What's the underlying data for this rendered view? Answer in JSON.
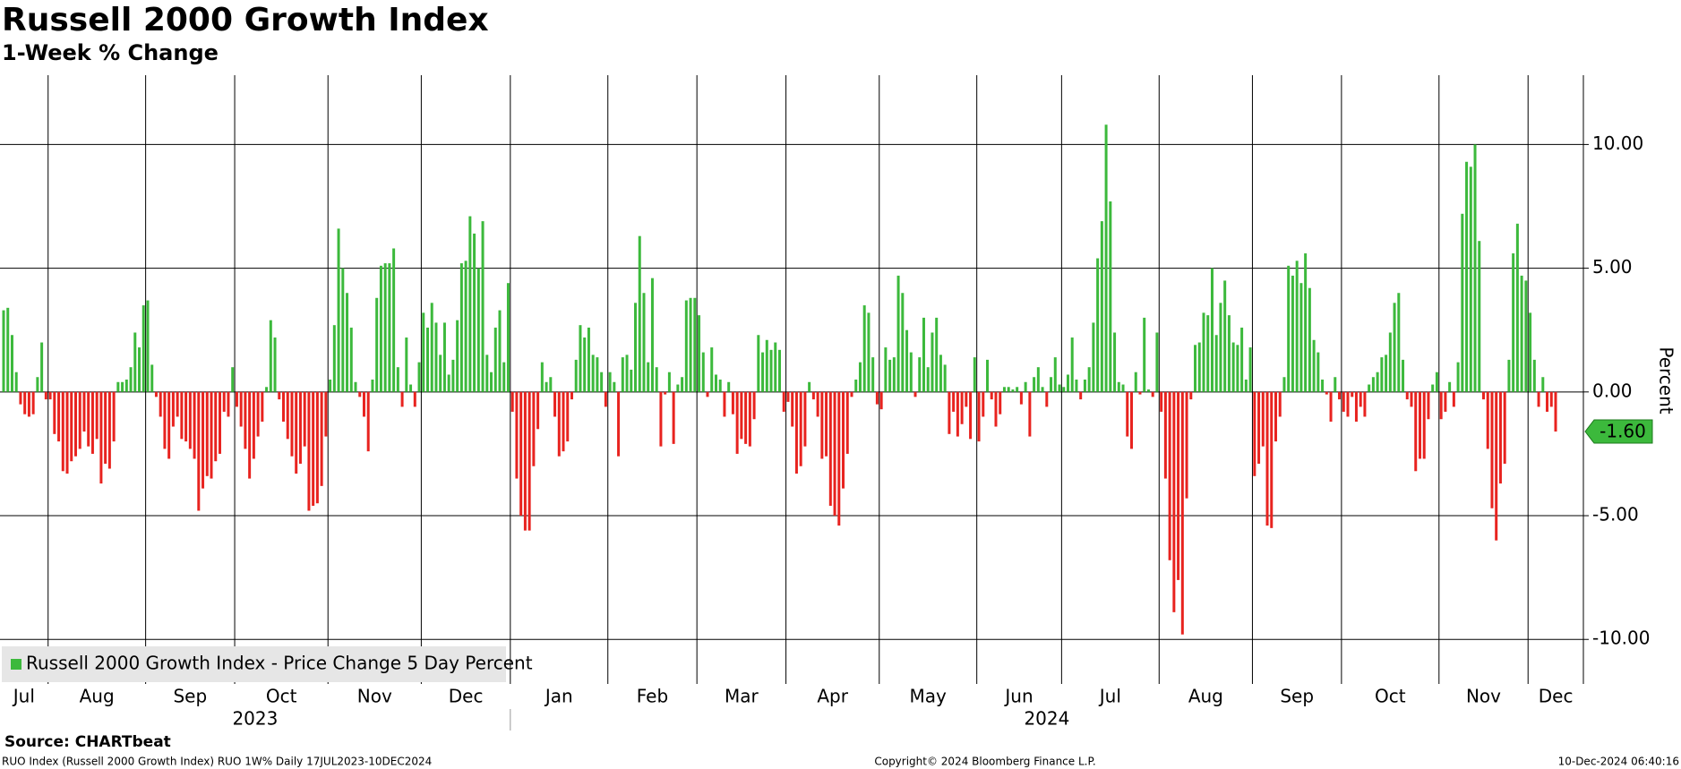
{
  "chart_data": {
    "type": "bar",
    "title": "Russell 2000 Growth Index",
    "subtitle": "1-Week % Change",
    "ylabel": "Percent",
    "categories": [
      "Jul",
      null,
      null,
      null,
      null,
      null,
      null,
      null,
      null,
      null,
      null,
      "Aug",
      null,
      null,
      null,
      null,
      null,
      null,
      null,
      null,
      null,
      null,
      null,
      null,
      null,
      null,
      null,
      null,
      null,
      null,
      null,
      null,
      null,
      null,
      "Sep",
      null,
      null,
      null,
      null,
      null,
      null,
      null,
      null,
      null,
      null,
      null,
      null,
      null,
      null,
      null,
      null,
      null,
      null,
      null,
      null,
      "Oct",
      null,
      null,
      null,
      null,
      null,
      null,
      null,
      null,
      null,
      null,
      null,
      null,
      null,
      null,
      null,
      null,
      null,
      null,
      null,
      null,
      null,
      "Nov",
      null,
      null,
      null,
      null,
      null,
      null,
      null,
      null,
      null,
      null,
      null,
      null,
      null,
      null,
      null,
      null,
      null,
      null,
      null,
      null,
      null,
      "Dec",
      null,
      null,
      null,
      null,
      null,
      null,
      null,
      null,
      null,
      null,
      null,
      null,
      null,
      null,
      null,
      null,
      null,
      null,
      null,
      null,
      "Jan",
      null,
      null,
      null,
      null,
      null,
      null,
      null,
      null,
      null,
      null,
      null,
      null,
      null,
      null,
      null,
      null,
      null,
      null,
      null,
      null,
      null,
      null,
      "Feb",
      null,
      null,
      null,
      null,
      null,
      null,
      null,
      null,
      null,
      null,
      null,
      null,
      null,
      null,
      null,
      null,
      null,
      null,
      null,
      null,
      "Mar",
      null,
      null,
      null,
      null,
      null,
      null,
      null,
      null,
      null,
      null,
      null,
      null,
      null,
      null,
      null,
      null,
      null,
      null,
      null,
      null,
      "Apr",
      null,
      null,
      null,
      null,
      null,
      null,
      null,
      null,
      null,
      null,
      null,
      null,
      null,
      null,
      null,
      null,
      null,
      null,
      null,
      null,
      null,
      "May",
      null,
      null,
      null,
      null,
      null,
      null,
      null,
      null,
      null,
      null,
      null,
      null,
      null,
      null,
      null,
      null,
      null,
      null,
      null,
      null,
      null,
      null,
      "Jun",
      null,
      null,
      null,
      null,
      null,
      null,
      null,
      null,
      null,
      null,
      null,
      null,
      null,
      null,
      null,
      null,
      null,
      null,
      null,
      "Jul",
      null,
      null,
      null,
      null,
      null,
      null,
      null,
      null,
      null,
      null,
      null,
      null,
      null,
      null,
      null,
      null,
      null,
      null,
      null,
      null,
      null,
      null,
      "Aug",
      null,
      null,
      null,
      null,
      null,
      null,
      null,
      null,
      null,
      null,
      null,
      null,
      null,
      null,
      null,
      null,
      null,
      null,
      null,
      null,
      null,
      "Sep",
      null,
      null,
      null,
      null,
      null,
      null,
      null,
      null,
      null,
      null,
      null,
      null,
      null,
      null,
      null,
      null,
      null,
      null,
      null,
      null,
      "Oct",
      null,
      null,
      null,
      null,
      null,
      null,
      null,
      null,
      null,
      null,
      null,
      null,
      null,
      null,
      null,
      null,
      null,
      null,
      null,
      null,
      null,
      null,
      "Nov",
      null,
      null,
      null,
      null,
      null,
      null,
      null,
      null,
      null,
      null,
      null,
      null,
      null,
      null,
      null,
      null,
      null,
      null,
      null,
      null,
      "Dec",
      null,
      null,
      null,
      null,
      null,
      null
    ],
    "years": [
      "2023",
      "2024"
    ],
    "series": [
      {
        "name": "Russell 2000 Growth Index - Price Change 5 Day Percent",
        "positive_color": "#3cb93c",
        "negative_color": "#e8231f",
        "values": [
          3.3,
          3.4,
          2.3,
          0.8,
          -0.5,
          -0.9,
          -1.0,
          -0.9,
          0.6,
          2.0,
          -0.3,
          -0.3,
          -1.7,
          -2.0,
          -3.2,
          -3.3,
          -2.8,
          -2.6,
          -2.3,
          -1.6,
          -2.2,
          -2.5,
          -1.9,
          -3.7,
          -2.9,
          -3.1,
          -2.0,
          0.4,
          0.4,
          0.5,
          1.0,
          2.4,
          1.8,
          3.5,
          3.7,
          1.1,
          -0.2,
          -1.0,
          -2.3,
          -2.7,
          -1.4,
          -1.0,
          -1.9,
          -2.0,
          -2.3,
          -2.7,
          -4.8,
          -3.9,
          -3.4,
          -3.5,
          -2.8,
          -2.5,
          -0.8,
          -1.0,
          1.0,
          -0.6,
          -1.4,
          -2.3,
          -3.5,
          -2.7,
          -1.8,
          -1.2,
          0.2,
          2.9,
          2.2,
          -0.3,
          -1.2,
          -1.9,
          -2.6,
          -3.3,
          -2.9,
          -2.2,
          -4.8,
          -4.6,
          -4.5,
          -3.8,
          -1.8,
          0.5,
          2.7,
          6.6,
          5.0,
          4.0,
          2.6,
          0.4,
          -0.2,
          -1.0,
          -2.4,
          0.5,
          3.8,
          5.1,
          5.2,
          5.2,
          5.8,
          1.0,
          -0.6,
          2.2,
          0.3,
          -0.6,
          1.2,
          3.2,
          2.6,
          3.6,
          2.8,
          1.5,
          2.8,
          0.7,
          1.3,
          2.9,
          5.2,
          5.3,
          7.1,
          6.4,
          5.0,
          6.9,
          1.5,
          0.8,
          2.6,
          3.3,
          1.2,
          4.4,
          -0.8,
          -3.5,
          -5.0,
          -5.6,
          -5.6,
          -3.0,
          -1.5,
          1.2,
          0.4,
          0.6,
          -1.0,
          -2.6,
          -2.4,
          -2.0,
          -0.3,
          1.3,
          2.7,
          2.2,
          2.6,
          1.5,
          1.4,
          0.8,
          -0.6,
          0.8,
          0.4,
          -2.6,
          1.4,
          1.5,
          0.9,
          3.6,
          6.3,
          4.0,
          1.2,
          4.6,
          1.0,
          -2.2,
          -0.1,
          0.8,
          -2.1,
          0.3,
          0.6,
          3.7,
          3.8,
          3.8,
          3.1,
          1.6,
          -0.2,
          1.8,
          0.7,
          0.5,
          -1.0,
          0.4,
          -0.9,
          -2.5,
          -1.9,
          -2.1,
          -2.2,
          -1.1,
          2.3,
          1.6,
          2.1,
          1.7,
          2.0,
          1.7,
          -0.8,
          -0.4,
          -1.4,
          -3.3,
          -3.0,
          -2.2,
          0.4,
          -0.3,
          -1.0,
          -2.7,
          -2.6,
          -4.6,
          -5.0,
          -5.4,
          -3.9,
          -2.5,
          -0.2,
          0.5,
          1.2,
          3.5,
          3.2,
          1.4,
          -0.5,
          -0.7,
          1.8,
          1.3,
          1.4,
          4.7,
          4.0,
          2.5,
          1.6,
          -0.2,
          1.4,
          3.0,
          1.0,
          2.4,
          3.0,
          1.5,
          1.1,
          -1.7,
          -0.8,
          -1.8,
          -1.3,
          -0.6,
          -1.9,
          1.4,
          -2.0,
          -1.0,
          1.3,
          -0.3,
          -1.4,
          -0.9,
          0.2,
          0.2,
          0.1,
          0.2,
          -0.5,
          0.4,
          -1.8,
          0.6,
          1.0,
          0.2,
          -0.6,
          0.6,
          1.4,
          0.3,
          0.2,
          0.7,
          2.2,
          0.5,
          -0.3,
          0.5,
          1.0,
          2.8,
          5.4,
          6.9,
          10.8,
          7.7,
          2.4,
          0.4,
          0.3,
          -1.8,
          -2.3,
          0.8,
          -0.1,
          3.0,
          0.1,
          -0.2,
          2.4,
          -0.8,
          -3.5,
          -6.8,
          -8.9,
          -7.6,
          -9.8,
          -4.3,
          -0.3,
          1.9,
          2.0,
          3.2,
          3.1,
          5.0,
          2.3,
          3.6,
          4.5,
          3.1,
          2.0,
          1.9,
          2.6,
          0.5,
          1.8,
          -3.4,
          -2.9,
          -2.2,
          -5.4,
          -5.5,
          -2.0,
          -1.0,
          0.6,
          5.1,
          4.7,
          5.3,
          4.4,
          5.6,
          4.2,
          2.1,
          1.6,
          0.5,
          -0.1,
          -1.2,
          0.6,
          -0.3,
          -0.8,
          -1.0,
          -0.2,
          -1.2,
          -0.6,
          -1.0,
          0.3,
          0.6,
          0.8,
          1.4,
          1.5,
          2.4,
          3.6,
          4.0,
          1.3,
          -0.3,
          -0.6,
          -3.2,
          -2.7,
          -2.7,
          -1.1,
          0.3,
          0.8,
          -1.1,
          -0.8,
          0.4,
          -0.6,
          1.2,
          7.2,
          9.3,
          9.1,
          10.0,
          6.1,
          -0.3,
          -2.3,
          -4.7,
          -6.0,
          -3.7,
          -2.9,
          1.3,
          5.6,
          6.8,
          4.7,
          4.5,
          3.2,
          1.3,
          -0.6,
          0.6,
          -0.8,
          -0.6,
          -1.6
        ],
        "value_labels": [
          null,
          null,
          null,
          null,
          null,
          null,
          null,
          null,
          null,
          null,
          null,
          null,
          null,
          null,
          null,
          null,
          null,
          null,
          null,
          null,
          null,
          null,
          null,
          null,
          null,
          null,
          null,
          null,
          null,
          null,
          null,
          null,
          null,
          null,
          null,
          null,
          null,
          null,
          null,
          null,
          null,
          null,
          null,
          null,
          null,
          null,
          null,
          null,
          null,
          null,
          null,
          null,
          null,
          null,
          null,
          null,
          null,
          null,
          null,
          null,
          null,
          null,
          null,
          null,
          null,
          null,
          null,
          null,
          null,
          null,
          null,
          null,
          null,
          null,
          null,
          null,
          null,
          null,
          null,
          null,
          null,
          null,
          null,
          null,
          null,
          null,
          null,
          null,
          null,
          null,
          null,
          null,
          null,
          null,
          null,
          null,
          null,
          null,
          null,
          null,
          null,
          null,
          null,
          null,
          null,
          null,
          null,
          null,
          null,
          null,
          null,
          null,
          null,
          null,
          null,
          null,
          null,
          null,
          null,
          null,
          null,
          null,
          null,
          null,
          null,
          null,
          null,
          null,
          null,
          null,
          null,
          null,
          null,
          null,
          null,
          null,
          null,
          null,
          null,
          null,
          null,
          null,
          null,
          null,
          null,
          null,
          null,
          null,
          null,
          null,
          null,
          null,
          null,
          null,
          null,
          null,
          null,
          null,
          null,
          null,
          null,
          null,
          null,
          null,
          null,
          null,
          null,
          null,
          null,
          null,
          null,
          null,
          null,
          null,
          null,
          null,
          null,
          null,
          null,
          null,
          null,
          null,
          null,
          null,
          null,
          null,
          null,
          null,
          null,
          null,
          null,
          null,
          null,
          null,
          null,
          null,
          null,
          null,
          null,
          null,
          null,
          null,
          null,
          null,
          null,
          null,
          null,
          null,
          null,
          null,
          null,
          null,
          null,
          null,
          null,
          null,
          null,
          null,
          null,
          null,
          null,
          null,
          null,
          null,
          null,
          null,
          null,
          null,
          null,
          null,
          null,
          null,
          null,
          null,
          null,
          null,
          null,
          null,
          null,
          null,
          null,
          null,
          null,
          null,
          null,
          null,
          null,
          null,
          null,
          null,
          null,
          null,
          null,
          null,
          null,
          null,
          null,
          null,
          null,
          null,
          null,
          null,
          null,
          null,
          null,
          null,
          null,
          null,
          null,
          null,
          null,
          null,
          null,
          null,
          null,
          null,
          null,
          null,
          null,
          null,
          null,
          null,
          null,
          null,
          null,
          null,
          null,
          null,
          null,
          null,
          null,
          null,
          null,
          null,
          null,
          null,
          null,
          null,
          null,
          null,
          null,
          null,
          null,
          null,
          null,
          null,
          null,
          null,
          null,
          null,
          null,
          null,
          null,
          null,
          null,
          null,
          null,
          null,
          null,
          null,
          null,
          null,
          null,
          null,
          null,
          null,
          null,
          null,
          null,
          null,
          null,
          null,
          null,
          null,
          null,
          null,
          null,
          null,
          null,
          null,
          null,
          null,
          null,
          null,
          null,
          null,
          null,
          null,
          null,
          null,
          null,
          null,
          null,
          null,
          null,
          null,
          null,
          null,
          null,
          null,
          null,
          null,
          null,
          null,
          null,
          null,
          "-1.60"
        ]
      }
    ],
    "ylim": [
      -11.8,
      12.8
    ],
    "yticks": [
      {
        "value": -10,
        "label": "-10.00"
      },
      {
        "value": -5,
        "label": "-5.00"
      },
      {
        "value": 0,
        "label": "0.00"
      },
      {
        "value": 5,
        "label": "5.00"
      },
      {
        "value": 10,
        "label": "10.00"
      }
    ],
    "grid": true,
    "legend": "bottom-left"
  },
  "footer": {
    "source": "Source: CHARTbeat",
    "left": "RUO Index (Russell 2000 Growth Index) RUO 1W%  Daily 17JUL2023-10DEC2024",
    "center": "Copyright© 2024 Bloomberg Finance L.P.",
    "right": "10-Dec-2024 06:40:16"
  }
}
